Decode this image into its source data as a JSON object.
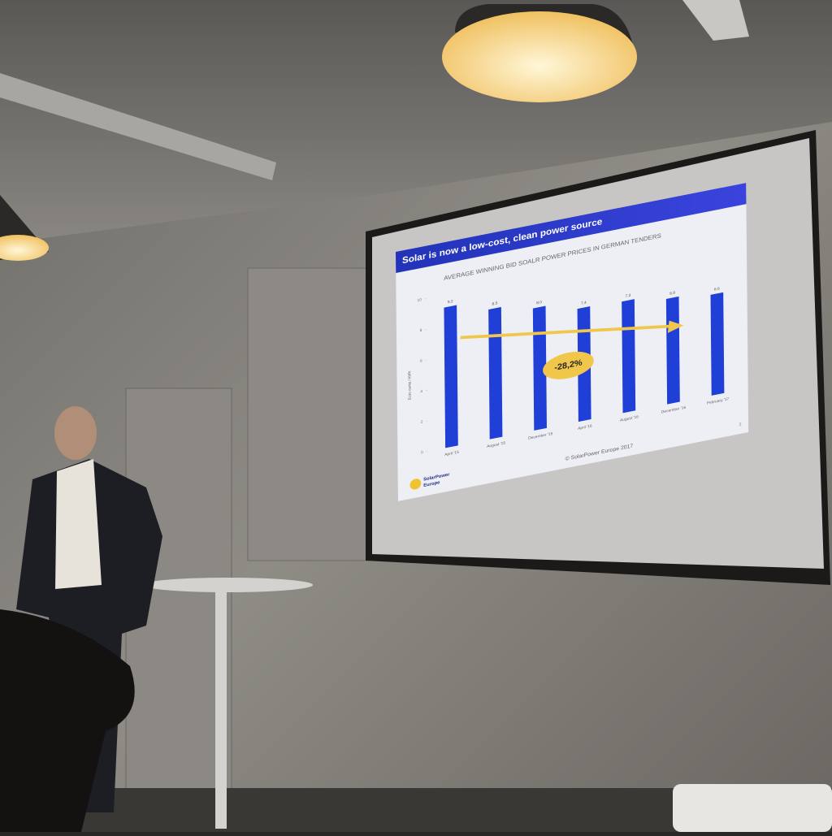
{
  "chart_data": {
    "type": "bar",
    "slide_title": "Solar is now a low-cost, clean power source",
    "title": "AVERAGE WINNING BID SOALR POWER PRICES IN GERMAN TENDERS",
    "y_label": "Euro cents / kWh",
    "categories": [
      "April '15",
      "August '15",
      "December '15",
      "April '16",
      "August '16",
      "December '16",
      "February '17"
    ],
    "values": [
      9.2,
      8.5,
      8.0,
      7.4,
      7.3,
      6.9,
      6.6
    ],
    "value_labels": [
      "9.2",
      "8.5",
      "8.0",
      "7.4",
      "7.3",
      "6.9",
      "6.6"
    ],
    "color": "#1f3fd6",
    "ylim": [
      0,
      10
    ],
    "yticks": [
      0,
      2,
      4,
      6,
      8,
      10
    ],
    "annotation": "-28,2%",
    "logo": [
      "SolarPower",
      "Europe"
    ],
    "footer": "© SolarPower Europe 2017",
    "page_number": "3"
  }
}
